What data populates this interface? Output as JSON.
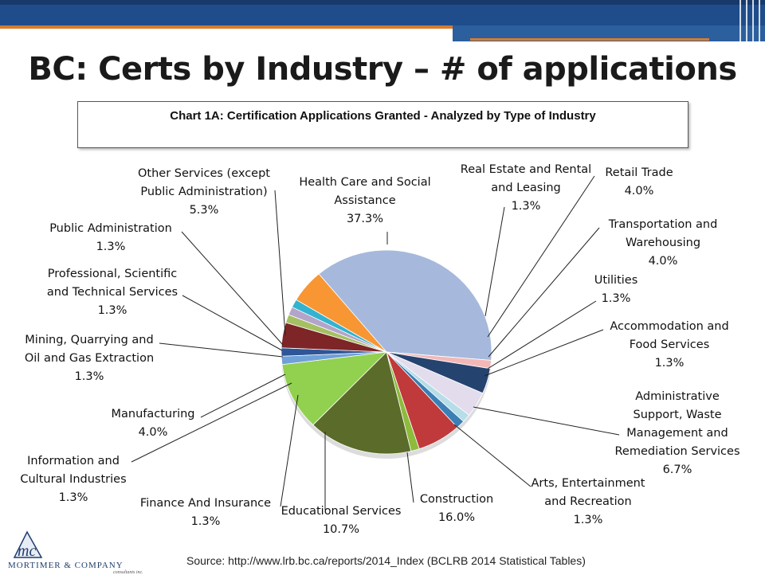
{
  "slide_title": "BC: Certs by Industry – # of applications",
  "source": "Source: http://www.lrb.bc.ca/reports/2014_Index (BCLRB 2014 Statistical Tables)",
  "logo": {
    "initials": "mc",
    "name": "MORTIMER & COMPANY",
    "sub": "consultants inc."
  },
  "chart_data": {
    "type": "pie",
    "title": "Chart 1A: Certification Applications Granted  - Analyzed by Type of Industry",
    "slices": [
      {
        "name": "Health Care and Social Assistance",
        "value": 37.3,
        "label": "37.3%",
        "color": "#a6b9dc"
      },
      {
        "name": "Real Estate and Rental and Leasing",
        "value": 1.3,
        "label": "1.3%",
        "color": "#f2b8b8"
      },
      {
        "name": "Retail Trade",
        "value": 4.0,
        "label": "4.0%",
        "color": "#25436f"
      },
      {
        "name": "Transportation and Warehousing",
        "value": 4.0,
        "label": "4.0%",
        "color": "#e2dcec"
      },
      {
        "name": "Utilities",
        "value": 1.3,
        "label": "1.3%",
        "color": "#b6dde8"
      },
      {
        "name": "Accommodation and Food Services",
        "value": 1.3,
        "label": "1.3%",
        "color": "#3a7fb5"
      },
      {
        "name": "Administrative Support, Waste Management and Remediation Services",
        "value": 6.7,
        "label": "6.7%",
        "color": "#c0393b"
      },
      {
        "name": "Arts, Entertainment and Recreation",
        "value": 1.3,
        "label": "1.3%",
        "color": "#8dbb3c"
      },
      {
        "name": "Construction",
        "value": 16.0,
        "label": "16.0%",
        "color": "#5b6b2a"
      },
      {
        "name": "Educational Services",
        "value": 10.7,
        "label": "10.7%",
        "color": "#92d050"
      },
      {
        "name": "Finance And Insurance",
        "value": 1.3,
        "label": "1.3%",
        "color": "#6fa0d8"
      },
      {
        "name": "Information and Cultural Industries",
        "value": 1.3,
        "label": "1.3%",
        "color": "#2e5597"
      },
      {
        "name": "Manufacturing",
        "value": 4.0,
        "label": "4.0%",
        "color": "#7d2527"
      },
      {
        "name": "Mining, Quarrying and Oil and Gas Extraction",
        "value": 1.3,
        "label": "1.3%",
        "color": "#a5c063"
      },
      {
        "name": "Professional, Scientific and Technical Services",
        "value": 1.3,
        "label": "1.3%",
        "color": "#b3a4c9"
      },
      {
        "name": "Public Administration",
        "value": 1.3,
        "label": "1.3%",
        "color": "#33b3cf"
      },
      {
        "name": "Other Services (except Public Administration)",
        "value": 5.3,
        "label": "5.3%",
        "color": "#f79633"
      }
    ],
    "label_lines": [
      [
        "Health Care and Social",
        "Assistance",
        "37.3%"
      ],
      [
        "Real Estate and Rental",
        "and Leasing",
        "1.3%"
      ],
      [
        "Retail Trade",
        "4.0%"
      ],
      [
        "Transportation and",
        "Warehousing",
        "4.0%"
      ],
      [
        "Utilities",
        "1.3%"
      ],
      [
        "Accommodation and",
        "Food Services",
        "1.3%"
      ],
      [
        "Administrative",
        "Support, Waste",
        "Management and",
        "Remediation Services",
        "6.7%"
      ],
      [
        "Arts, Entertainment",
        "and Recreation",
        "1.3%"
      ],
      [
        "Construction",
        "16.0%"
      ],
      [
        "Educational Services",
        "10.7%"
      ],
      [
        "Finance And Insurance",
        "1.3%"
      ],
      [
        "Information and",
        "Cultural Industries",
        "1.3%"
      ],
      [
        "Manufacturing",
        "4.0%"
      ],
      [
        "Mining, Quarrying and",
        "Oil and Gas Extraction",
        "1.3%"
      ],
      [
        "Professional, Scientific",
        "and Technical Services",
        "1.3%"
      ],
      [
        "Public Administration",
        "1.3%"
      ],
      [
        "Other Services (except",
        "Public Administration)",
        "5.3%"
      ]
    ]
  }
}
